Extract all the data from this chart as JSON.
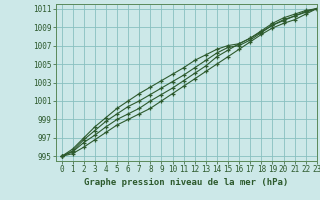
{
  "title": "Graphe pression niveau de la mer (hPa)",
  "bg_color": "#cce8e8",
  "grid_color": "#89c0c0",
  "line_color": "#2d5a2d",
  "spine_color": "#5a8a5a",
  "xlim": [
    -0.5,
    23
  ],
  "ylim": [
    994.5,
    1011.5
  ],
  "yticks": [
    995,
    997,
    999,
    1001,
    1003,
    1005,
    1007,
    1009,
    1011
  ],
  "xticks": [
    0,
    1,
    2,
    3,
    4,
    5,
    6,
    7,
    8,
    9,
    10,
    11,
    12,
    13,
    14,
    15,
    16,
    17,
    18,
    19,
    20,
    21,
    22,
    23
  ],
  "series": [
    [
      995.0,
      995.5,
      996.5,
      997.3,
      998.2,
      999.0,
      999.6,
      1000.2,
      1001.0,
      1001.7,
      1002.4,
      1003.2,
      1004.0,
      1004.8,
      1005.8,
      1006.5,
      1007.2,
      1007.8,
      1008.5,
      1009.2,
      1009.7,
      1010.2,
      1010.7,
      1011.0
    ],
    [
      995.0,
      995.8,
      997.0,
      998.2,
      999.2,
      1000.2,
      1001.0,
      1001.8,
      1002.5,
      1003.2,
      1003.9,
      1004.6,
      1005.4,
      1006.0,
      1006.6,
      1007.0,
      1007.2,
      1007.8,
      1008.6,
      1009.4,
      1010.0,
      1010.4,
      1010.8,
      1011.0
    ],
    [
      995.0,
      995.3,
      996.0,
      996.8,
      997.6,
      998.4,
      999.0,
      999.6,
      1000.2,
      1001.0,
      1001.8,
      1002.6,
      1003.4,
      1004.2,
      1005.0,
      1005.8,
      1006.6,
      1007.4,
      1008.2,
      1008.9,
      1009.4,
      1009.8,
      1010.4,
      1011.0
    ],
    [
      995.0,
      995.6,
      996.8,
      997.8,
      998.8,
      999.6,
      1000.4,
      1001.0,
      1001.7,
      1002.4,
      1003.1,
      1003.8,
      1004.6,
      1005.4,
      1006.2,
      1006.8,
      1007.0,
      1007.6,
      1008.4,
      1009.2,
      1009.8,
      1010.2,
      1010.6,
      1011.0
    ]
  ]
}
